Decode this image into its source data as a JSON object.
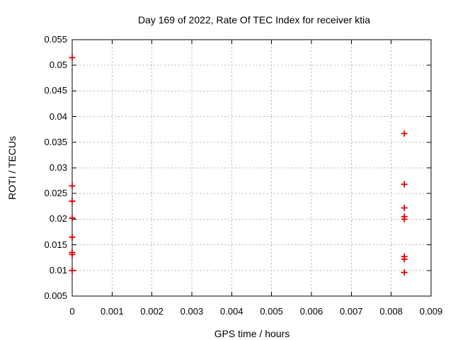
{
  "chart_data": {
    "type": "scatter",
    "title": "Day 169 of 2022, Rate Of TEC Index for receiver ktia",
    "xlabel": "GPS time / hours",
    "ylabel": "ROTI / TECUs",
    "xlim": [
      0,
      0.009
    ],
    "ylim": [
      0.005,
      0.055
    ],
    "x_ticks": [
      0,
      0.001,
      0.002,
      0.003,
      0.004,
      0.005,
      0.006,
      0.007,
      0.008,
      0.009
    ],
    "x_tick_labels": [
      "0",
      "0.001",
      "0.002",
      "0.003",
      "0.004",
      "0.005",
      "0.006",
      "0.007",
      "0.008",
      "0.009"
    ],
    "y_ticks": [
      0.005,
      0.01,
      0.015,
      0.02,
      0.025,
      0.03,
      0.035,
      0.04,
      0.045,
      0.05,
      0.055
    ],
    "y_tick_labels": [
      "0.005",
      "0.01",
      "0.015",
      "0.02",
      "0.025",
      "0.03",
      "0.035",
      "0.04",
      "0.045",
      "0.05",
      "0.055"
    ],
    "grid": true,
    "legend": "none",
    "marker": "plus",
    "marker_color": "#e00000",
    "grid_color": "#b4b4b4",
    "axis_color": "#000000",
    "series": [
      {
        "name": "ROTI",
        "points": [
          [
            0,
            0.0515
          ],
          [
            0,
            0.0265
          ],
          [
            0,
            0.0235
          ],
          [
            0,
            0.0202
          ],
          [
            0,
            0.0165
          ],
          [
            0,
            0.0135
          ],
          [
            0,
            0.0131
          ],
          [
            0,
            0.01
          ],
          [
            0.00833,
            0.0367
          ],
          [
            0.00833,
            0.0268
          ],
          [
            0.00833,
            0.0222
          ],
          [
            0.00833,
            0.0205
          ],
          [
            0.00833,
            0.02
          ],
          [
            0.00833,
            0.0127
          ],
          [
            0.00833,
            0.0122
          ],
          [
            0.00833,
            0.0096
          ]
        ]
      }
    ]
  }
}
